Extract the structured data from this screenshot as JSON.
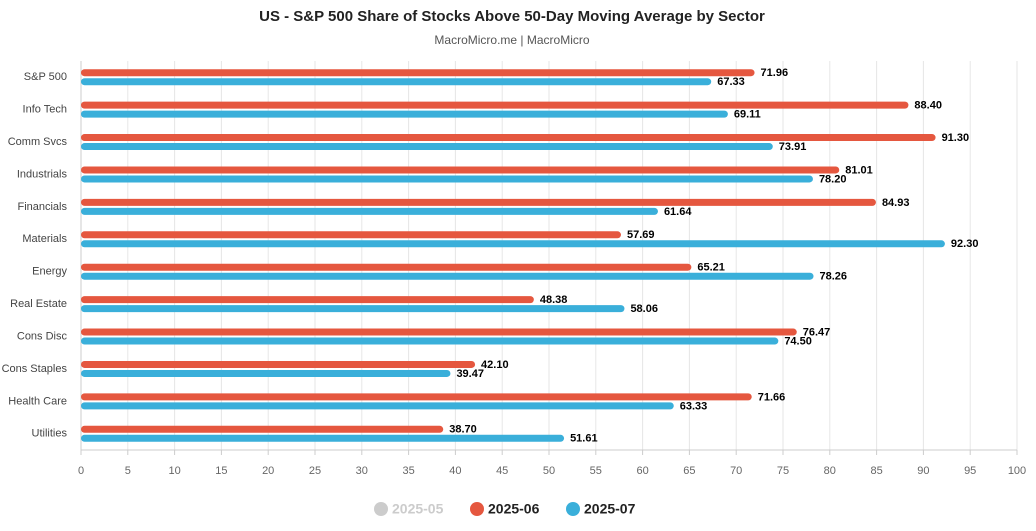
{
  "chart_data": {
    "type": "hbar",
    "title": "US - S&P 500 Share of Stocks Above 50-Day Moving Average by Sector",
    "subtitle": "MacroMicro.me | MacroMicro",
    "categories": [
      "S&P 500",
      "Info Tech",
      "Comm Svcs",
      "Industrials",
      "Financials",
      "Materials",
      "Energy",
      "Real Estate",
      "Cons Disc",
      "Cons Staples",
      "Health Care",
      "Utilities"
    ],
    "series": [
      {
        "name": "2025-05",
        "color": "#cccccc",
        "visible": false,
        "values": [
          null,
          null,
          null,
          null,
          null,
          null,
          null,
          null,
          null,
          null,
          null,
          null
        ]
      },
      {
        "name": "2025-06",
        "color": "#e5573f",
        "visible": true,
        "values": [
          71.96,
          88.4,
          91.3,
          81.01,
          84.93,
          57.69,
          65.21,
          48.38,
          76.47,
          42.1,
          71.66,
          38.7
        ],
        "value_labels": [
          "71.96",
          "88.40",
          "91.30",
          "81.01",
          "84.93",
          "57.69",
          "65.21",
          "48.38",
          "76.47",
          "42.10",
          "71.66",
          "38.70"
        ]
      },
      {
        "name": "2025-07",
        "color": "#3aafda",
        "visible": true,
        "values": [
          67.33,
          69.11,
          73.91,
          78.2,
          61.64,
          92.3,
          78.26,
          58.06,
          74.5,
          39.47,
          63.33,
          51.61
        ],
        "value_labels": [
          "67.33",
          "69.11",
          "73.91",
          "78.20",
          "61.64",
          "92.30",
          "78.26",
          "58.06",
          "74.50",
          "39.47",
          "63.33",
          "51.61"
        ]
      }
    ],
    "xlim": [
      0,
      100
    ],
    "xticks": [
      0,
      5,
      10,
      15,
      20,
      25,
      30,
      35,
      40,
      45,
      50,
      55,
      60,
      65,
      70,
      75,
      80,
      85,
      90,
      95,
      100
    ],
    "grid": true
  }
}
